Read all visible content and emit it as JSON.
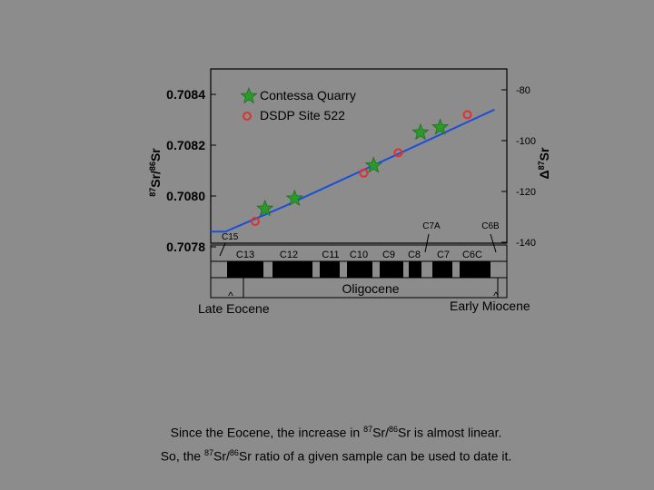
{
  "chart_data": {
    "type": "scatter",
    "ylabel_left": "87Sr/86Sr",
    "ylabel_right": "Δ87Sr",
    "y_left": {
      "ticks": [
        0.7078,
        0.708,
        0.7082,
        0.7084
      ],
      "tick_labels": [
        "0.7078",
        "0.7080",
        "0.7082",
        "0.7084"
      ]
    },
    "y_right": {
      "ticks": [
        -140,
        -120,
        -100,
        -80
      ],
      "tick_labels": [
        "-140",
        "-120",
        "-100",
        "-80"
      ]
    },
    "series": [
      {
        "name": "Contessa Quarry",
        "marker": "star",
        "color": "#2a9a2a",
        "points": [
          {
            "x": 0.22,
            "y": 0.70795
          },
          {
            "x": 0.34,
            "y": 0.70799
          },
          {
            "x": 0.66,
            "y": 0.70812
          },
          {
            "x": 0.85,
            "y": 0.70825
          },
          {
            "x": 0.93,
            "y": 0.70827
          }
        ]
      },
      {
        "name": "DSDP Site 522",
        "marker": "circle",
        "color": "#e03030",
        "points": [
          {
            "x": 0.18,
            "y": 0.7079
          },
          {
            "x": 0.62,
            "y": 0.70809
          },
          {
            "x": 0.76,
            "y": 0.70817
          },
          {
            "x": 1.04,
            "y": 0.70832
          }
        ]
      },
      {
        "name": "trend",
        "color": "#1a4fd6",
        "line": [
          {
            "x": 0.0,
            "y": 0.70786
          },
          {
            "x": 0.06,
            "y": 0.70786
          },
          {
            "x": 0.3,
            "y": 0.70796
          },
          {
            "x": 1.15,
            "y": 0.70834
          }
        ]
      }
    ],
    "chrons_top": [
      "C7A",
      "C6B"
    ],
    "chron_c15": "C15",
    "chrons": [
      "C13",
      "C12",
      "C11",
      "C10",
      "C9",
      "C8",
      "C7",
      "C6C"
    ],
    "epoch": "Oligocene",
    "late_eocene": "Late Eocene",
    "early_miocene": "Early Miocene",
    "arrow_glyph": "^"
  },
  "caption": {
    "l1a": "Since the Eocene, the increase in ",
    "sup1": "87",
    "l1b": "Sr/",
    "sup2": "86",
    "l1c": "Sr is almost linear.",
    "l2a": "So, the ",
    "sup3": "87",
    "l2b": "Sr/",
    "sup4": "86",
    "l2c": "Sr ratio of a given sample can be used to date it."
  }
}
